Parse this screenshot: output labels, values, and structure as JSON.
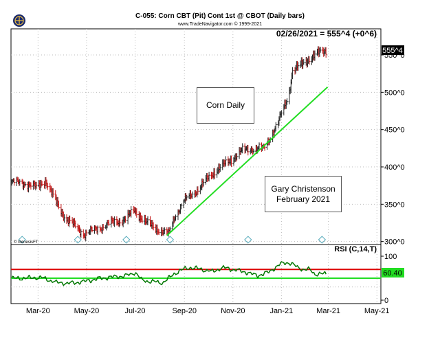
{
  "header": {
    "title": "C-055:  Corn CBT (Pit) Cont 1st @ CBOT  (Daily bars)",
    "subtitle": "www.TradeNavigator.com © 1999-2021",
    "last_price_label": "02/26/2021 = 555^4 (+0^6)"
  },
  "annotations": {
    "box1": "Corn Daily",
    "box2_line1": "Gary Christenson",
    "box2_line2": "February 2021",
    "genesis": "© GenesisFT",
    "rsi_label": "RSI (C,14,T)",
    "price_marker": "555^4",
    "rsi_marker": "60.40"
  },
  "colors": {
    "trendline": "#22dd22",
    "rsi_line": "#007700",
    "rsi_upper": "#dd0000",
    "rsi_lower": "#22dd22",
    "rsi_label": "#008800"
  },
  "chart_data": [
    {
      "type": "ohlc",
      "title": "C-055:  Corn CBT (Pit) Cont 1st @ CBOT  (Daily bars)",
      "x_ticks": [
        "Mar-20",
        "May-20",
        "Jul-20",
        "Sep-20",
        "Nov-20",
        "Jan-21",
        "Mar-21",
        "May-21"
      ],
      "y_ticks": [
        "300^0",
        "350^0",
        "400^0",
        "450^0",
        "500^0",
        "550^0"
      ],
      "ylim": [
        296,
        585
      ],
      "last_value": "555^4",
      "approx_close_path": [
        {
          "date": "2020-01-28",
          "value": 380
        },
        {
          "date": "2020-02-15",
          "value": 378
        },
        {
          "date": "2020-02-28",
          "value": 372
        },
        {
          "date": "2020-03-10",
          "value": 382
        },
        {
          "date": "2020-03-20",
          "value": 360
        },
        {
          "date": "2020-04-05",
          "value": 330
        },
        {
          "date": "2020-04-20",
          "value": 318
        },
        {
          "date": "2020-04-28",
          "value": 310
        },
        {
          "date": "2020-05-15",
          "value": 318
        },
        {
          "date": "2020-06-01",
          "value": 325
        },
        {
          "date": "2020-06-20",
          "value": 330
        },
        {
          "date": "2020-06-30",
          "value": 342
        },
        {
          "date": "2020-07-15",
          "value": 325
        },
        {
          "date": "2020-08-05",
          "value": 313
        },
        {
          "date": "2020-08-12",
          "value": 310
        },
        {
          "date": "2020-08-20",
          "value": 335
        },
        {
          "date": "2020-09-01",
          "value": 355
        },
        {
          "date": "2020-09-20",
          "value": 372
        },
        {
          "date": "2020-10-10",
          "value": 395
        },
        {
          "date": "2020-10-25",
          "value": 405
        },
        {
          "date": "2020-11-10",
          "value": 420
        },
        {
          "date": "2020-11-25",
          "value": 425
        },
        {
          "date": "2020-12-10",
          "value": 425
        },
        {
          "date": "2020-12-28",
          "value": 460
        },
        {
          "date": "2021-01-10",
          "value": 495
        },
        {
          "date": "2021-01-15",
          "value": 530
        },
        {
          "date": "2021-01-25",
          "value": 535
        },
        {
          "date": "2021-02-05",
          "value": 545
        },
        {
          "date": "2021-02-12",
          "value": 550
        },
        {
          "date": "2021-02-26",
          "value": 555.5
        }
      ],
      "trendline": {
        "from": {
          "date": "2020-08-10",
          "value": 308
        },
        "to": {
          "date": "2021-02-28",
          "value": 507
        }
      }
    },
    {
      "type": "line",
      "title": "RSI (C,14,T)",
      "y_ticks": [
        0,
        100
      ],
      "ylim": [
        0,
        100
      ],
      "reference_lines": [
        70,
        50
      ],
      "last_value": 60.4,
      "approx_values": [
        {
          "date": "2020-01-28",
          "value": 50
        },
        {
          "date": "2020-03-05",
          "value": 52
        },
        {
          "date": "2020-03-25",
          "value": 40
        },
        {
          "date": "2020-04-10",
          "value": 38
        },
        {
          "date": "2020-04-28",
          "value": 42
        },
        {
          "date": "2020-05-15",
          "value": 48
        },
        {
          "date": "2020-06-01",
          "value": 52
        },
        {
          "date": "2020-06-20",
          "value": 55
        },
        {
          "date": "2020-07-01",
          "value": 63
        },
        {
          "date": "2020-07-10",
          "value": 45
        },
        {
          "date": "2020-08-05",
          "value": 40
        },
        {
          "date": "2020-08-20",
          "value": 62
        },
        {
          "date": "2020-09-05",
          "value": 75
        },
        {
          "date": "2020-09-20",
          "value": 72
        },
        {
          "date": "2020-10-05",
          "value": 65
        },
        {
          "date": "2020-10-20",
          "value": 74
        },
        {
          "date": "2020-11-05",
          "value": 68
        },
        {
          "date": "2020-11-20",
          "value": 62
        },
        {
          "date": "2020-12-01",
          "value": 55
        },
        {
          "date": "2020-12-15",
          "value": 62
        },
        {
          "date": "2020-12-31",
          "value": 82
        },
        {
          "date": "2021-01-10",
          "value": 86
        },
        {
          "date": "2021-01-20",
          "value": 76
        },
        {
          "date": "2021-01-28",
          "value": 70
        },
        {
          "date": "2021-02-05",
          "value": 70
        },
        {
          "date": "2021-02-12",
          "value": 60
        },
        {
          "date": "2021-02-26",
          "value": 60.4
        }
      ]
    }
  ]
}
